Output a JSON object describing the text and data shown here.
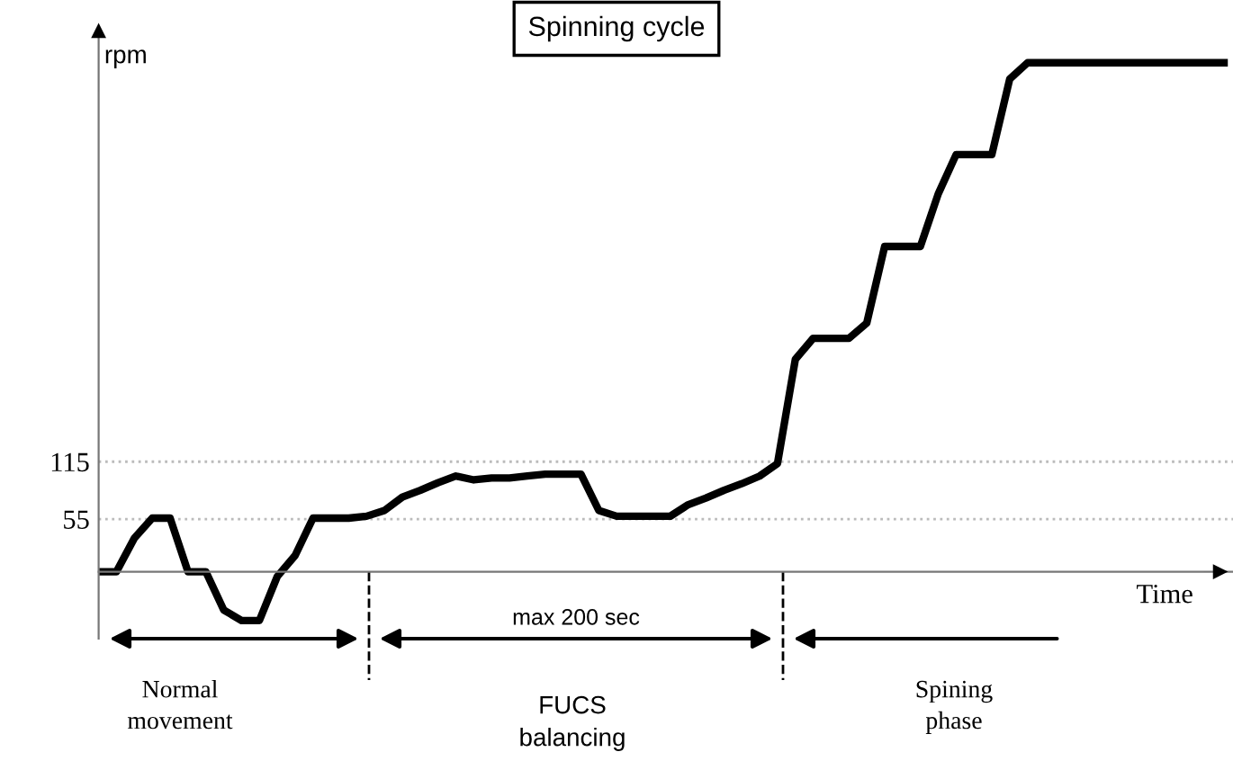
{
  "chart_data": {
    "type": "line",
    "title": "Spinning cycle",
    "ylabel": "rpm",
    "xlabel": "Time",
    "categories": [
      null,
      null,
      null,
      null,
      null,
      null,
      null,
      null,
      null,
      null,
      null,
      null,
      null,
      null,
      null,
      null,
      null,
      null,
      null,
      null,
      null,
      null,
      null,
      null,
      null,
      null,
      null,
      null,
      null,
      null,
      null,
      null,
      null,
      null,
      null,
      null,
      null,
      null,
      null,
      null,
      null,
      null,
      null,
      null,
      null,
      null,
      null,
      null,
      null,
      null,
      null,
      null,
      null,
      null,
      null,
      null,
      null,
      null,
      null,
      null,
      null,
      null,
      null,
      null
    ],
    "series": [
      {
        "color": "#000000",
        "values": [
          0,
          0,
          35,
          56,
          56,
          0,
          0,
          -40,
          -51,
          -51,
          -5,
          17,
          56,
          56,
          56,
          58,
          64,
          78,
          85,
          93,
          100,
          96,
          98,
          98,
          100,
          102,
          102,
          102,
          64,
          58,
          58,
          58,
          58,
          70,
          77,
          85,
          92,
          100,
          113,
          222,
          244,
          244,
          244,
          260,
          340,
          340,
          340,
          395,
          436,
          436,
          436,
          515,
          532,
          532,
          532,
          532,
          532,
          532,
          532,
          532,
          532,
          532,
          532,
          532
        ]
      }
    ],
    "ylim": [
      -70,
      560
    ],
    "yticks": [
      55,
      115
    ],
    "tick_labels": "y",
    "grid": false,
    "legend": false,
    "marker": "none",
    "line_style": "solid",
    "ref_lines": [
      {
        "axis": "y",
        "value": 55,
        "color": "#bbbbbb",
        "line_style": "dotted"
      },
      {
        "axis": "y",
        "value": 115,
        "color": "#bbbbbb",
        "line_style": "dotted"
      }
    ],
    "annotations": [
      "max 200 sec",
      "Normal movement",
      "FUCS balancing",
      "Spining phase"
    ]
  }
}
